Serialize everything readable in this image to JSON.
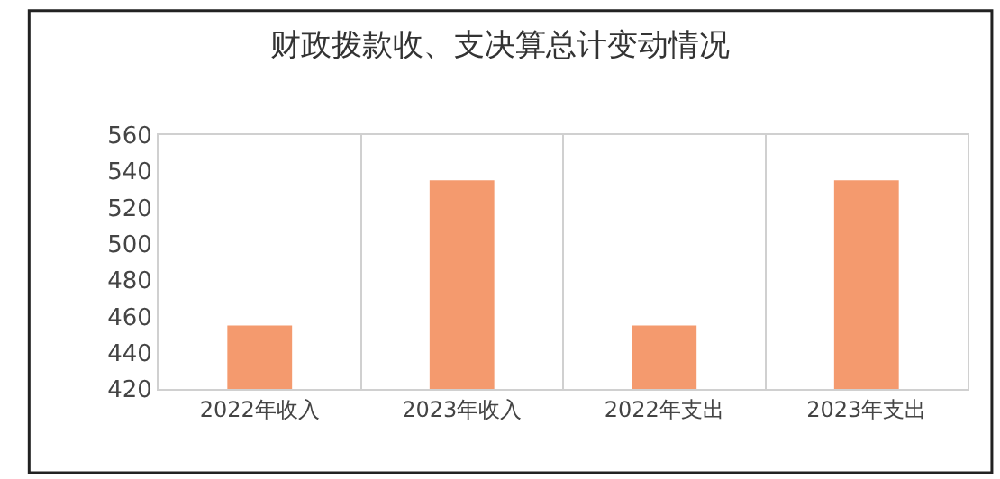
{
  "chart_data": {
    "type": "bar",
    "title": "财政拨款收、支决算总计变动情况",
    "categories": [
      "2022年收入",
      "2023年收入",
      "2022年支出",
      "2023年支出"
    ],
    "values": [
      455,
      535,
      455,
      535
    ],
    "color": "#f49a6e",
    "ylim": [
      420,
      560
    ],
    "yticks": [
      420,
      440,
      460,
      480,
      500,
      520,
      540,
      560
    ],
    "grid": "x"
  }
}
